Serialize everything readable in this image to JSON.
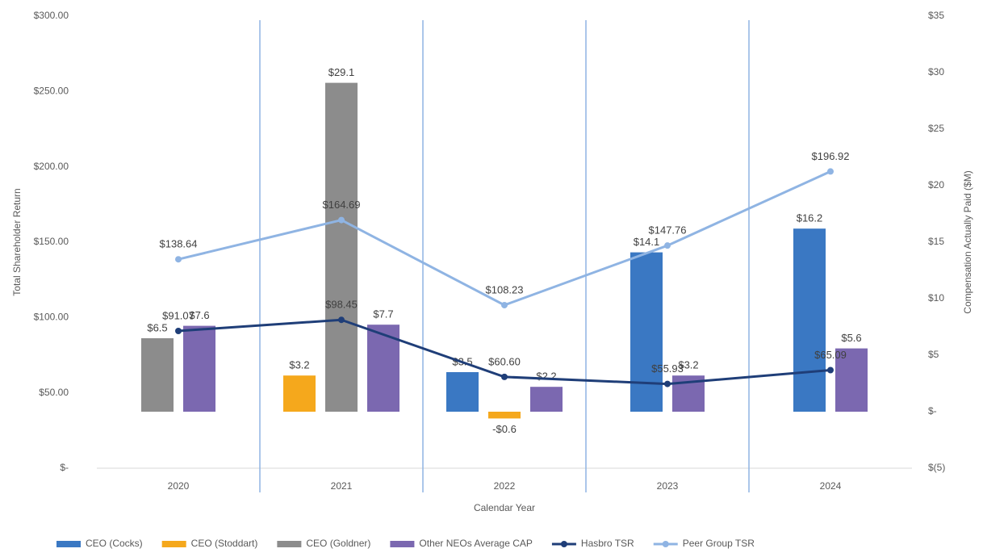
{
  "chart_data": {
    "type": "bar",
    "x_label": "Calendar Year",
    "y_label": "Total Shareholder Return",
    "y2_label": "Compensation Actually Paid ($M)",
    "categories": [
      "2020",
      "2021",
      "2022",
      "2023",
      "2024"
    ],
    "ylim": [
      0,
      300
    ],
    "yticks": [
      {
        "value": 0,
        "label": "$-"
      },
      {
        "value": 50,
        "label": "$50.00"
      },
      {
        "value": 100,
        "label": "$100.00"
      },
      {
        "value": 150,
        "label": "$150.00"
      },
      {
        "value": 200,
        "label": "$200.00"
      },
      {
        "value": 250,
        "label": "$250.00"
      },
      {
        "value": 300,
        "label": "$300.00"
      }
    ],
    "y2lim": [
      -5,
      35
    ],
    "y2ticks": [
      {
        "value": -5,
        "label": "$(5)"
      },
      {
        "value": 0,
        "label": "$-"
      },
      {
        "value": 5,
        "label": "$5"
      },
      {
        "value": 10,
        "label": "$10"
      },
      {
        "value": 15,
        "label": "$15"
      },
      {
        "value": 20,
        "label": "$20"
      },
      {
        "value": 25,
        "label": "$25"
      },
      {
        "value": 30,
        "label": "$30"
      },
      {
        "value": 35,
        "label": "$35"
      }
    ],
    "legend": "bottom",
    "series": [
      {
        "name": "CEO (Cocks)",
        "type": "bar",
        "axis": "y2",
        "color": "#3a78c3",
        "values": [
          null,
          null,
          3.5,
          14.1,
          16.2
        ],
        "value_labels": [
          null,
          null,
          "$3.5",
          "$14.1",
          "$16.2"
        ]
      },
      {
        "name": "CEO (Stoddart)",
        "type": "bar",
        "axis": "y2",
        "color": "#f5a81c",
        "values": [
          null,
          3.2,
          -0.6,
          null,
          null
        ],
        "value_labels": [
          null,
          "$3.2",
          "-$0.6",
          null,
          null
        ]
      },
      {
        "name": "CEO (Goldner)",
        "type": "bar",
        "axis": "y2",
        "color": "#8c8c8c",
        "values": [
          6.5,
          29.1,
          null,
          null,
          null
        ],
        "value_labels": [
          "$6.5",
          "$29.1",
          null,
          null,
          null
        ]
      },
      {
        "name": "Other NEOs Average CAP",
        "type": "bar",
        "axis": "y2",
        "color": "#7b68b0",
        "values": [
          7.6,
          7.7,
          2.2,
          3.2,
          5.6
        ],
        "value_labels": [
          "$7.6",
          "$7.7",
          "$2.2",
          "$3.2",
          "$5.6"
        ]
      },
      {
        "name": "Hasbro TSR",
        "type": "line",
        "color": "#1f3e78",
        "values": [
          91.07,
          98.45,
          60.6,
          55.93,
          65.09
        ],
        "value_labels": [
          "$91.07",
          "$98.45",
          "$60.60",
          "$55.93",
          "$65.09"
        ]
      },
      {
        "name": "Peer Group TSR",
        "type": "line",
        "color": "#8fb4e3",
        "values": [
          138.64,
          164.69,
          108.23,
          147.76,
          196.92
        ],
        "value_labels": [
          "$138.64",
          "$164.69",
          "$108.23",
          "$147.76",
          "$196.92"
        ]
      }
    ]
  }
}
